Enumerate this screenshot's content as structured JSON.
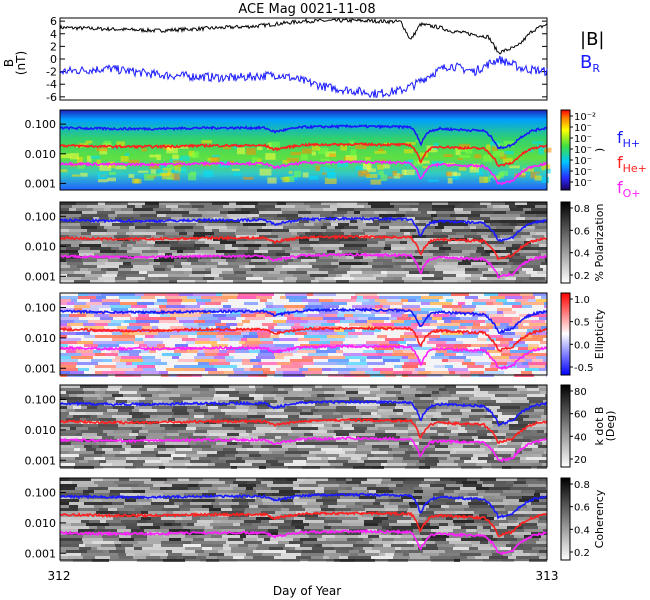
{
  "title": "ACE Mag 0021-11-08",
  "xlabel": "Day of Year",
  "x_ticks": [
    "312",
    "313"
  ],
  "legend": {
    "b_total": "|B|",
    "b_r": "B",
    "b_r_sub": "R",
    "f_h": "f",
    "f_h_sub": "H+",
    "f_he": "f",
    "f_he_sub": "He+",
    "f_o": "f",
    "f_o_sub": "O+"
  },
  "colors": {
    "b_total": "#000000",
    "b_r": "#1a1aff",
    "f_h": "#1a1aff",
    "f_he": "#ff2020",
    "f_o": "#ff20ff"
  },
  "chart_data": [
    {
      "type": "line",
      "panel": "magnetic-field",
      "ylabel": "B",
      "yunit": "(nT)",
      "yticks": [
        "6",
        "4",
        "2",
        "0",
        "-2",
        "-4",
        "-6"
      ],
      "ylim": [
        -6.5,
        6.5
      ],
      "xlim": [
        312,
        313
      ],
      "series": [
        {
          "name": "|B|",
          "x": [
            312.0,
            312.2,
            312.4,
            312.5,
            312.6,
            312.7,
            312.72,
            312.74,
            312.78,
            312.8,
            312.88,
            312.9,
            312.94,
            312.97,
            313.0
          ],
          "y": [
            5.0,
            4.5,
            5.2,
            6.0,
            6.1,
            5.9,
            3.0,
            5.5,
            5.0,
            4.5,
            3.5,
            1.0,
            2.0,
            4.5,
            5.5
          ]
        },
        {
          "name": "B",
          "x": [
            312.0,
            312.1,
            312.2,
            312.35,
            312.45,
            312.55,
            312.65,
            312.7,
            312.73,
            312.76,
            312.8,
            312.85,
            312.9,
            312.95,
            313.0
          ],
          "y": [
            -2.0,
            -1.5,
            -2.5,
            -3.0,
            -2.5,
            -4.5,
            -5.5,
            -5.0,
            -4.0,
            -2.5,
            -1.0,
            -2.0,
            0.0,
            -1.5,
            -2.0
          ]
        }
      ]
    },
    {
      "type": "heatmap",
      "panel": "power-spectrum",
      "yticks": [
        "0.100",
        "0.010",
        "0.001"
      ],
      "colorbar_ticks": [
        "10⁻²",
        "10⁻",
        "10⁻",
        "10⁻",
        "10⁻",
        "10⁻",
        "10⁻"
      ],
      "colorbar_label": ")"
    },
    {
      "type": "heatmap",
      "panel": "polarization",
      "yticks": [
        "0.100",
        "0.010",
        "0.001"
      ],
      "colorbar_ticks": [
        "0.8",
        "0.6",
        "0.4",
        "0.2"
      ],
      "colorbar_label": "% Polarization"
    },
    {
      "type": "heatmap",
      "panel": "ellipticity",
      "yticks": [
        "0.100",
        "0.010",
        "0.001"
      ],
      "colorbar_ticks": [
        "1.0",
        "0.5",
        "0.0",
        "-0.5"
      ],
      "colorbar_label": "Ellipticity"
    },
    {
      "type": "heatmap",
      "panel": "k-dot-b",
      "yticks": [
        "0.100",
        "0.010",
        "0.001"
      ],
      "colorbar_ticks": [
        "80",
        "60",
        "40",
        "20"
      ],
      "colorbar_label": "k dot B",
      "colorbar_unit": "(Deg)"
    },
    {
      "type": "heatmap",
      "panel": "coherency",
      "yticks": [
        "0.100",
        "0.010",
        "0.001"
      ],
      "colorbar_ticks": [
        "0.8",
        "0.6",
        "0.4",
        "0.2"
      ],
      "colorbar_label": "Coherency"
    },
    {
      "type": "line",
      "panel": "gyrofrequencies",
      "ylim_log": [
        0.0006,
        0.3
      ],
      "xlim": [
        312,
        313
      ],
      "series": [
        {
          "name": "f_H+",
          "x": [
            312.0,
            312.1,
            312.2,
            312.3,
            312.42,
            312.44,
            312.5,
            312.6,
            312.72,
            312.74,
            312.76,
            312.78,
            312.82,
            312.87,
            312.9,
            312.93,
            312.97,
            313.0
          ],
          "y": [
            0.075,
            0.07,
            0.07,
            0.075,
            0.075,
            0.055,
            0.08,
            0.085,
            0.08,
            0.02,
            0.06,
            0.07,
            0.065,
            0.06,
            0.015,
            0.02,
            0.06,
            0.075
          ]
        },
        {
          "name": "f_He+",
          "x": [
            312.0,
            312.1,
            312.2,
            312.3,
            312.42,
            312.44,
            312.5,
            312.6,
            312.72,
            312.74,
            312.76,
            312.78,
            312.82,
            312.87,
            312.9,
            312.93,
            312.97,
            313.0
          ],
          "y": [
            0.019,
            0.0175,
            0.0175,
            0.019,
            0.019,
            0.014,
            0.02,
            0.021,
            0.02,
            0.005,
            0.015,
            0.0175,
            0.016,
            0.015,
            0.0038,
            0.005,
            0.015,
            0.019
          ]
        },
        {
          "name": "f_O+",
          "x": [
            312.0,
            312.1,
            312.2,
            312.3,
            312.42,
            312.44,
            312.5,
            312.6,
            312.72,
            312.74,
            312.76,
            312.78,
            312.82,
            312.87,
            312.9,
            312.93,
            312.97,
            313.0
          ],
          "y": [
            0.0047,
            0.0044,
            0.0044,
            0.0047,
            0.0047,
            0.0034,
            0.005,
            0.0053,
            0.005,
            0.0012,
            0.0038,
            0.0044,
            0.004,
            0.0038,
            0.00095,
            0.0012,
            0.0038,
            0.0047
          ]
        }
      ]
    }
  ]
}
